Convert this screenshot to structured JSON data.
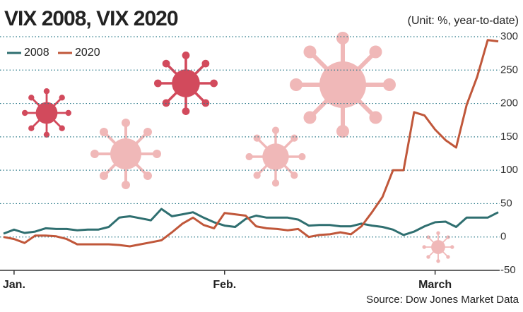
{
  "chart_data": {
    "type": "line",
    "title": "VIX 2008, VIX 2020",
    "unit": "(Unit: %, year-to-date)",
    "source": "Source: Dow Jones Market Data",
    "categories": [
      null,
      "Jan.",
      null,
      null,
      null,
      null,
      null,
      null,
      null,
      null,
      null,
      null,
      null,
      null,
      null,
      null,
      null,
      null,
      null,
      null,
      null,
      "Feb.",
      null,
      null,
      null,
      null,
      null,
      null,
      null,
      null,
      null,
      null,
      null,
      null,
      null,
      null,
      null,
      null,
      null,
      null,
      null,
      "March",
      null,
      null,
      null,
      null,
      null,
      null
    ],
    "series": [
      {
        "name": "2008",
        "color": "#2f6f70",
        "values": [
          5,
          11,
          6,
          8,
          13,
          12,
          12,
          10,
          11,
          11,
          15,
          29,
          31,
          28,
          25,
          42,
          31,
          34,
          37,
          29,
          22,
          17,
          15,
          27,
          32,
          29,
          29,
          29,
          26,
          17,
          18,
          18,
          16,
          16,
          20,
          17,
          15,
          11,
          3,
          8,
          16,
          22,
          23,
          15,
          29,
          29,
          29,
          37
        ]
      },
      {
        "name": "2020",
        "color": "#c0573a",
        "values": [
          0,
          -3,
          -9,
          2,
          2,
          1,
          -3,
          -11,
          -11,
          -11,
          -11,
          -12,
          -14,
          -11,
          -8,
          -5,
          7,
          20,
          29,
          18,
          13,
          36,
          34,
          32,
          16,
          13,
          12,
          10,
          12,
          0,
          3,
          4,
          7,
          4,
          16,
          37,
          60,
          100,
          100,
          187,
          182,
          161,
          145,
          134,
          198,
          240,
          295,
          293
        ]
      }
    ],
    "ylim": [
      -50,
      300
    ],
    "yticks": [
      -50,
      0,
      50,
      100,
      150,
      200,
      250,
      300
    ],
    "grid": true
  }
}
